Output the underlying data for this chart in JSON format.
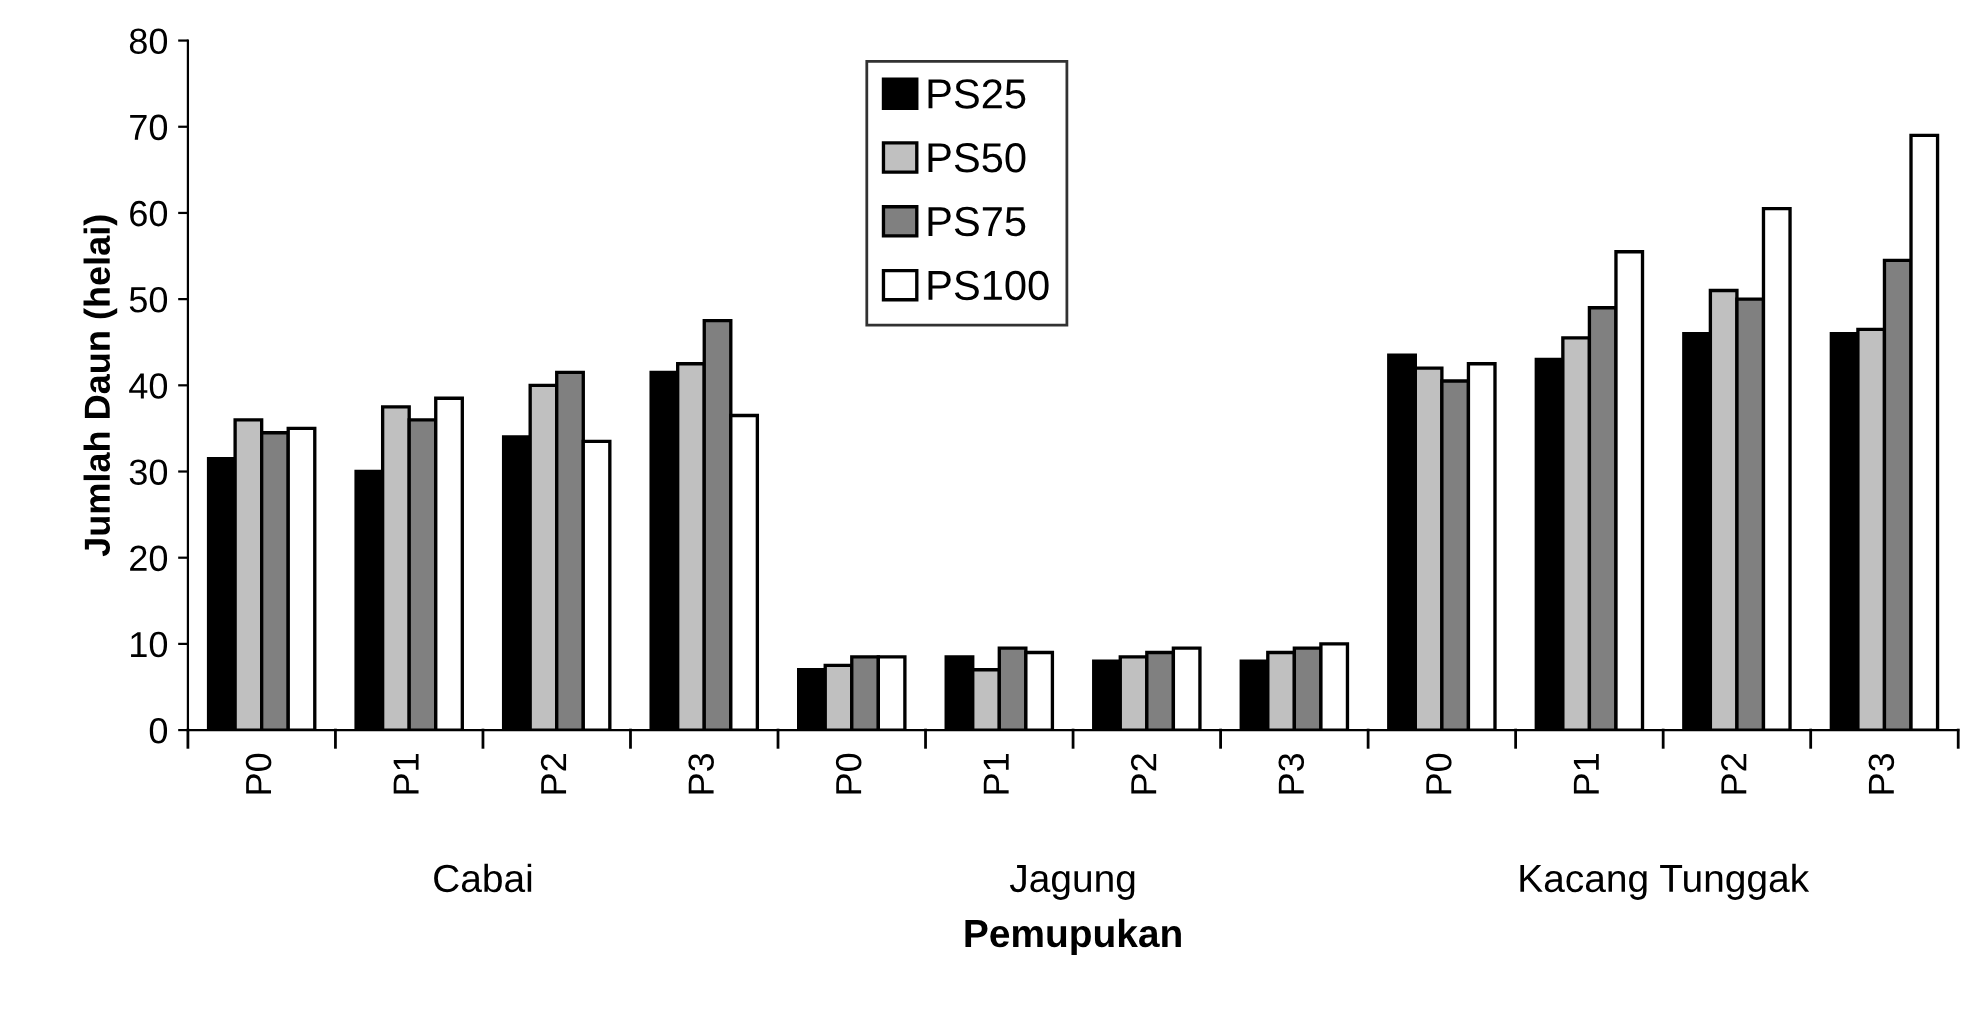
{
  "chart_data": {
    "type": "bar",
    "xlabel": "Pemupukan",
    "ylabel": "Jumlah Daun (helai)",
    "categories": [
      "P0",
      "P1",
      "P2",
      "P3",
      "P0",
      "P1",
      "P2",
      "P3",
      "P0",
      "P1",
      "P2",
      "P3"
    ],
    "annotations": [
      "Cabai",
      "Jagung",
      "Kacang Tunggak"
    ],
    "series": [
      {
        "name": "PS25",
        "color": "#000000",
        "values": [
          31.5,
          30,
          34,
          41.5,
          7,
          8.5,
          8,
          8,
          43.5,
          43,
          46,
          46
        ]
      },
      {
        "name": "PS50",
        "color": "#c0c0c0",
        "values": [
          36,
          37.5,
          40,
          42.5,
          7.5,
          7,
          8.5,
          9,
          42,
          45.5,
          51,
          46.5
        ]
      },
      {
        "name": "PS75",
        "color": "#808080",
        "values": [
          34.5,
          36,
          41.5,
          47.5,
          8.5,
          9.5,
          9,
          9.5,
          40.5,
          49,
          50,
          54.5
        ]
      },
      {
        "name": "PS100",
        "color": "#ffffff",
        "values": [
          35,
          38.5,
          33.5,
          36.5,
          8.5,
          9,
          9.5,
          10,
          42.5,
          55.5,
          60.5,
          69
        ]
      }
    ],
    "ylim": [
      0,
      80
    ],
    "yticks": [
      0,
      10,
      20,
      30,
      40,
      50,
      60,
      70,
      80
    ],
    "grid": false,
    "legend": "top"
  }
}
